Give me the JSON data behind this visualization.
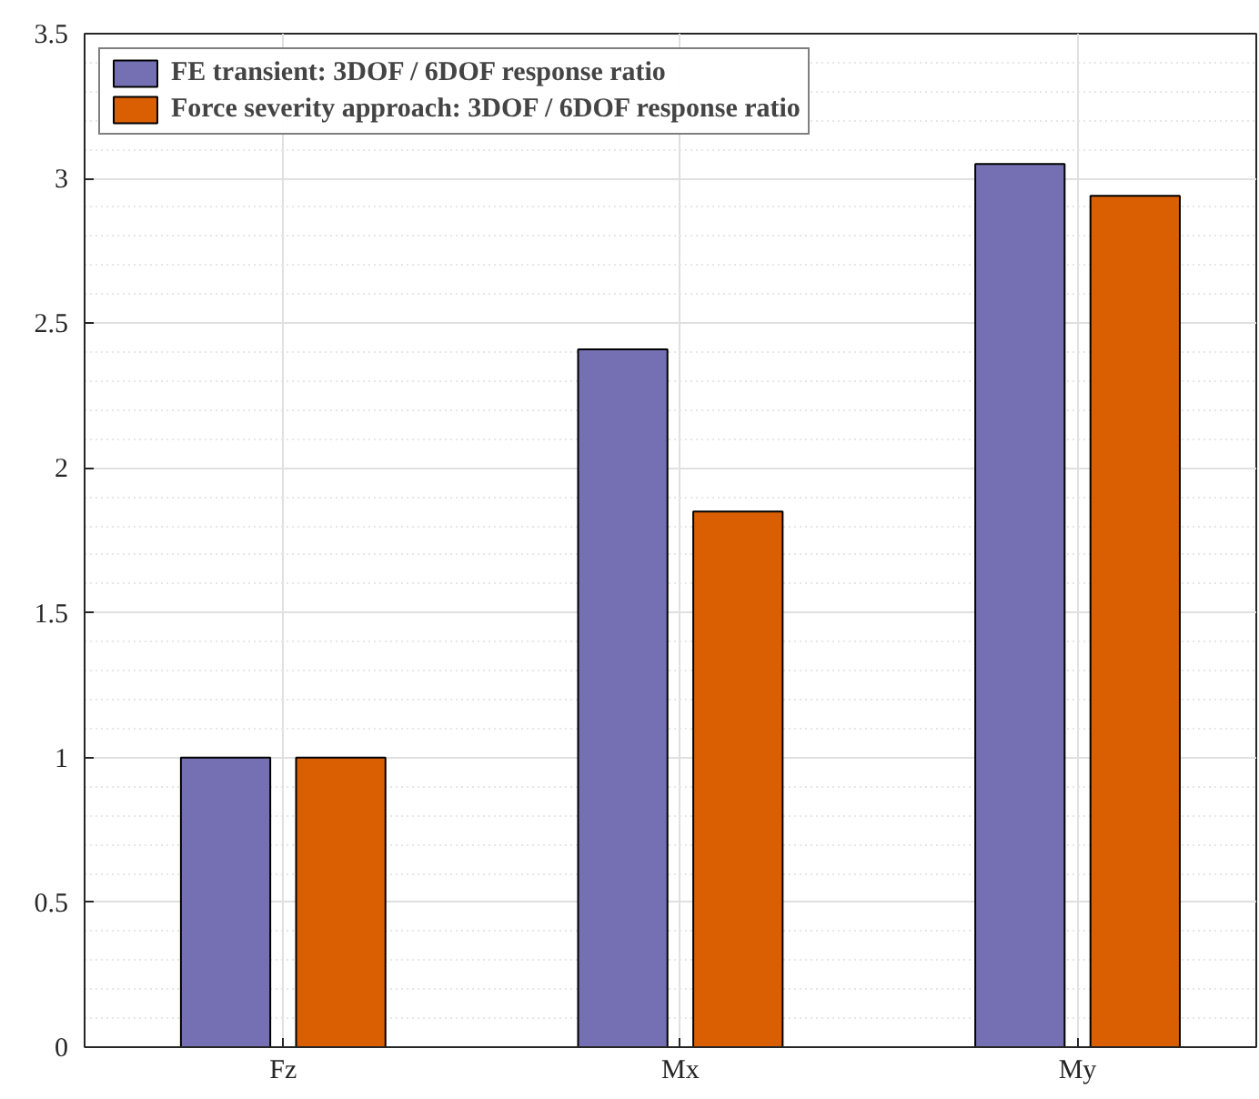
{
  "chart_data": {
    "type": "bar",
    "categories": [
      "Fz",
      "Mx",
      "My"
    ],
    "series": [
      {
        "name": "FE transient: 3DOF / 6DOF response ratio",
        "color": "#7570b3",
        "values": [
          1.0,
          2.41,
          3.05
        ]
      },
      {
        "name": "Force severity approach: 3DOF / 6DOF response ratio",
        "color": "#d95f02",
        "values": [
          1.0,
          1.85,
          2.94
        ]
      }
    ],
    "ylim": [
      0,
      3.5
    ],
    "yticks": [
      0,
      {
        "value": 0.5,
        "label": "0.5"
      },
      1,
      {
        "value": 1.5,
        "label": "1.5"
      },
      2,
      {
        "value": 2.5,
        "label": "2.5"
      },
      3,
      {
        "value": 3.5,
        "label": "3.5"
      }
    ],
    "grid": true,
    "legend": "top left"
  }
}
